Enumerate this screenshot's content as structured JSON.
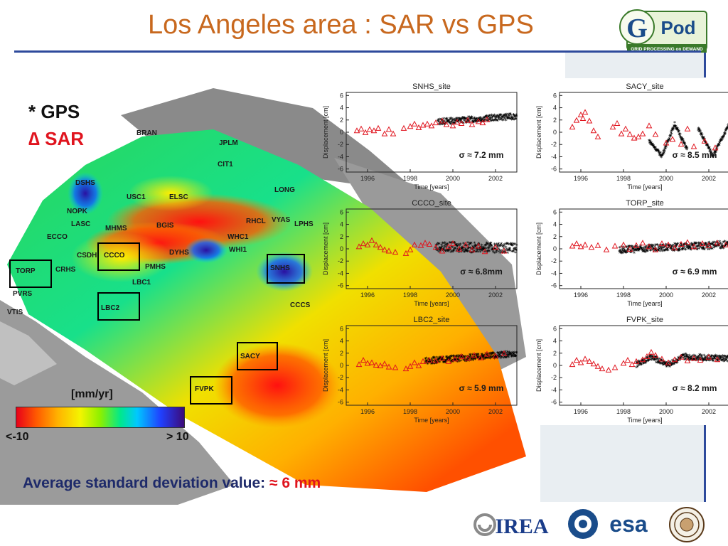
{
  "title": "Los Angeles area : SAR vs GPS",
  "gpod_logo": {
    "letter": "G",
    "word": "Pod",
    "tagline": "GRID PROCESSING on DEMAND"
  },
  "legend": {
    "gps": "* GPS",
    "sar": "∆ SAR"
  },
  "colorbar": {
    "label": "[mm/yr]",
    "min_label": "<-10",
    "max_label": "> 10"
  },
  "average": {
    "prefix": "Average standard deviation value: ",
    "value": "≈ 6 mm"
  },
  "logos": {
    "irea": "IREA",
    "esa": "esa"
  },
  "map_sites": [
    "BRAN",
    "JPLM",
    "CIT1",
    "DSHS",
    "USC1",
    "ELSC",
    "LONG",
    "NOPK",
    "LASC",
    "MHMS",
    "BGIS",
    "RHCL",
    "VYAS",
    "LPHS",
    "ECCO",
    "WHC1",
    "CCCO",
    "DYHS",
    "WHI1",
    "CSDH",
    "SNHS",
    "TORP",
    "CRHS",
    "PMHS",
    "LBC1",
    "PVRS",
    "LBC2",
    "CCCS",
    "VTIS",
    "SACY",
    "FVPK"
  ],
  "colors": {
    "gps": "#000000",
    "sar": "#e0141e",
    "title": "#c8681e",
    "rule": "#2e4a9c"
  },
  "chart_data": [
    {
      "type": "scatter",
      "title": "SNHS_site",
      "xlabel": "Time [years]",
      "ylabel": "Displacement [cm]",
      "xlim": [
        1995,
        2003
      ],
      "ylim": [
        -6.5,
        6.5
      ],
      "xticks": [
        1996,
        1998,
        2000,
        2002
      ],
      "yticks": [
        -6,
        -4,
        -2,
        0,
        2,
        4,
        6
      ],
      "sigma_label": "σ ≈ 7.2 mm",
      "gps_segments": [
        {
          "x": [
            1999.3,
            2003.0
          ],
          "y": [
            1.6,
            2.5
          ],
          "spread": 1.0
        }
      ],
      "sar_points": {
        "x": [
          1995.5,
          1995.7,
          1995.9,
          1996.1,
          1996.3,
          1996.5,
          1996.8,
          1997.0,
          1997.2,
          1997.7,
          1998.0,
          1998.2,
          1998.4,
          1998.6,
          1998.8,
          1999.0,
          1999.2,
          1999.5,
          1999.7,
          2000.0,
          2000.2,
          2000.4,
          2000.7,
          2000.9,
          2001.2,
          2001.4,
          2001.6
        ],
        "y": [
          0.2,
          0.5,
          -0.1,
          0.4,
          0.2,
          0.6,
          -0.3,
          0.4,
          -0.3,
          0.6,
          0.9,
          1.3,
          0.7,
          1.1,
          1.3,
          1.0,
          1.5,
          1.8,
          1.2,
          1.0,
          1.6,
          1.4,
          1.9,
          1.2,
          1.7,
          1.5,
          2.0
        ]
      },
      "annotations": []
    },
    {
      "type": "scatter",
      "title": "SACY_site",
      "xlabel": "Time [years]",
      "ylabel": "Displacement [cm]",
      "xlim": [
        1995,
        2003
      ],
      "ylim": [
        -6.5,
        6.5
      ],
      "xticks": [
        1996,
        1998,
        2000,
        2002
      ],
      "yticks": [
        -6,
        -4,
        -2,
        0,
        2,
        4,
        6
      ],
      "sigma_label": "σ ≈ 8.5 mm",
      "gps_segments": [
        {
          "x": [
            1999.2,
            1999.8
          ],
          "y": [
            -1.5,
            -4.0
          ],
          "spread": 0.6
        },
        {
          "x": [
            1999.8,
            2000.4
          ],
          "y": [
            -4.0,
            1.2
          ],
          "spread": 0.6
        },
        {
          "x": [
            2000.4,
            2001.0
          ],
          "y": [
            1.2,
            -3.0
          ],
          "spread": 0.6
        },
        {
          "x": [
            2001.5,
            2002.2
          ],
          "y": [
            0.5,
            -4.0
          ],
          "spread": 0.6
        },
        {
          "x": [
            2002.2,
            2003.0
          ],
          "y": [
            -4.0,
            1.5
          ],
          "spread": 0.6
        }
      ],
      "sar_points": {
        "x": [
          1995.6,
          1995.8,
          1996.0,
          1996.1,
          1996.2,
          1996.4,
          1996.6,
          1996.8,
          1997.5,
          1997.7,
          1997.9,
          1998.1,
          1998.3,
          1998.5,
          1998.7,
          1998.9,
          1999.2,
          1999.5,
          2000.0,
          2000.3,
          2000.7,
          2001.0,
          2001.3,
          2001.8,
          2002.3
        ],
        "y": [
          0.8,
          1.9,
          2.8,
          2.2,
          3.2,
          1.8,
          0.2,
          -0.8,
          0.8,
          1.4,
          -0.3,
          0.5,
          -0.4,
          -1.0,
          -0.8,
          -0.3,
          1.0,
          -0.4,
          -1.8,
          -1.2,
          -2.0,
          0.5,
          -2.4,
          -1.5,
          -2.6
        ]
      },
      "annotations": []
    },
    {
      "type": "scatter",
      "title": "CCCO_site",
      "xlabel": "Time [years]",
      "ylabel": "Displacement [cm]",
      "xlim": [
        1995,
        2003
      ],
      "ylim": [
        -6.5,
        6.5
      ],
      "xticks": [
        1996,
        1998,
        2000,
        2002
      ],
      "yticks": [
        -6,
        -4,
        -2,
        0,
        2,
        4,
        6
      ],
      "sigma_label": "σ ≈ 6.8mm",
      "gps_segments": [
        {
          "x": [
            1999.2,
            2003.0
          ],
          "y": [
            0.2,
            0.0
          ],
          "spread": 1.6
        }
      ],
      "sar_points": {
        "x": [
          1995.6,
          1995.8,
          1996.0,
          1996.2,
          1996.4,
          1996.6,
          1996.8,
          1997.0,
          1997.3,
          1997.8,
          1998.0,
          1998.2,
          1998.5,
          1998.7,
          1998.9,
          1999.2,
          1999.5,
          1999.8,
          2000.0,
          2000.3,
          2000.6,
          2000.9,
          2001.2,
          2001.5,
          2002.0,
          2002.4
        ],
        "y": [
          0.3,
          0.8,
          0.6,
          1.3,
          0.6,
          0.2,
          -0.2,
          -0.4,
          -0.6,
          -0.8,
          -0.2,
          0.6,
          0.5,
          0.9,
          0.7,
          0.2,
          -0.4,
          0.3,
          0.8,
          -0.1,
          0.6,
          -0.2,
          0.4,
          -0.5,
          0.2,
          -0.4
        ]
      },
      "annotations": []
    },
    {
      "type": "scatter",
      "title": "TORP_site",
      "xlabel": "Time [years]",
      "ylabel": "Displacement [cm]",
      "xlim": [
        1995,
        2003
      ],
      "ylim": [
        -6.5,
        6.5
      ],
      "xticks": [
        1996,
        1998,
        2000,
        2002
      ],
      "yticks": [
        -6,
        -4,
        -2,
        0,
        2,
        4,
        6
      ],
      "sigma_label": "σ ≈ 6.9 mm",
      "gps_segments": [
        {
          "x": [
            1997.8,
            2003.0
          ],
          "y": [
            -0.3,
            0.6
          ],
          "spread": 1.2
        }
      ],
      "sar_points": {
        "x": [
          1995.6,
          1995.8,
          1996.0,
          1996.2,
          1996.5,
          1996.8,
          1997.2,
          1997.6,
          1998.0,
          1998.3,
          1998.6,
          1998.9,
          1999.2,
          1999.5,
          1999.8,
          2000.1,
          2000.4,
          2000.7,
          2001.0,
          2001.3,
          2001.7,
          2002.0,
          2002.4,
          2002.8
        ],
        "y": [
          0.4,
          0.8,
          0.3,
          0.6,
          0.2,
          0.5,
          -0.2,
          0.4,
          0.6,
          -0.1,
          0.5,
          0.9,
          0.3,
          -0.2,
          0.8,
          0.6,
          0.1,
          0.7,
          1.0,
          0.3,
          0.8,
          0.5,
          0.9,
          0.6
        ]
      },
      "annotations": []
    },
    {
      "type": "scatter",
      "title": "LBC2_site",
      "xlabel": "Time [years]",
      "ylabel": "Displacement [cm]",
      "xlim": [
        1995,
        2003
      ],
      "ylim": [
        -6.5,
        6.5
      ],
      "xticks": [
        1996,
        1998,
        2000,
        2002
      ],
      "yticks": [
        -6,
        -4,
        -2,
        0,
        2,
        4,
        6
      ],
      "sigma_label": "σ ≈ 5.9 mm",
      "gps_segments": [
        {
          "x": [
            1998.7,
            2003.0
          ],
          "y": [
            0.6,
            1.8
          ],
          "spread": 1.0
        }
      ],
      "sar_points": {
        "x": [
          1995.6,
          1995.8,
          1996.0,
          1996.2,
          1996.4,
          1996.6,
          1996.8,
          1997.0,
          1997.3,
          1997.8,
          1998.0,
          1998.2,
          1998.4,
          1998.6,
          1998.9,
          1999.2,
          1999.5,
          1999.8,
          2000.1,
          2000.4,
          2000.7,
          2001.0,
          2001.3,
          2001.6,
          2002.0,
          2002.4
        ],
        "y": [
          0.1,
          0.8,
          0.3,
          0.4,
          0.0,
          -0.1,
          0.2,
          -0.3,
          -0.4,
          -0.6,
          -0.2,
          0.4,
          -0.1,
          0.6,
          0.8,
          0.7,
          1.1,
          0.6,
          1.0,
          1.4,
          1.1,
          1.6,
          1.2,
          1.8,
          1.5,
          1.9
        ]
      },
      "annotations": []
    },
    {
      "type": "scatter",
      "title": "FVPK_site",
      "xlabel": "Time [years]",
      "ylabel": "Displacement [cm]",
      "xlim": [
        1995,
        2003
      ],
      "ylim": [
        -6.5,
        6.5
      ],
      "xticks": [
        1996,
        1998,
        2000,
        2002
      ],
      "yticks": [
        -6,
        -4,
        -2,
        0,
        2,
        4,
        6
      ],
      "sigma_label": "σ ≈ 8.2 mm",
      "gps_segments": [
        {
          "x": [
            1998.6,
            1999.3
          ],
          "y": [
            0.0,
            1.2
          ],
          "spread": 0.9
        },
        {
          "x": [
            1999.3,
            2000.1
          ],
          "y": [
            1.2,
            0.0
          ],
          "spread": 0.9
        },
        {
          "x": [
            2000.1,
            2000.8
          ],
          "y": [
            0.0,
            1.3
          ],
          "spread": 0.9
        },
        {
          "x": [
            2000.8,
            2003.0
          ],
          "y": [
            1.3,
            1.0
          ],
          "spread": 1.0
        }
      ],
      "sar_points": {
        "x": [
          1995.6,
          1995.8,
          1996.0,
          1996.2,
          1996.4,
          1996.6,
          1996.8,
          1997.0,
          1997.3,
          1997.6,
          1998.0,
          1998.2,
          1998.4,
          1998.6,
          1998.9,
          1999.1,
          1999.3,
          1999.5,
          1999.8,
          2000.1,
          2000.4,
          2000.7,
          2001.0,
          2001.3,
          2001.6,
          2002.0,
          2002.4
        ],
        "y": [
          0.1,
          0.8,
          0.4,
          1.0,
          0.6,
          0.2,
          -0.2,
          -0.6,
          -0.8,
          -0.4,
          0.3,
          0.8,
          0.1,
          0.6,
          0.9,
          1.4,
          2.1,
          1.6,
          1.0,
          0.4,
          0.9,
          1.3,
          0.7,
          1.1,
          0.8,
          1.3,
          0.9
        ]
      },
      "annotations": []
    }
  ]
}
